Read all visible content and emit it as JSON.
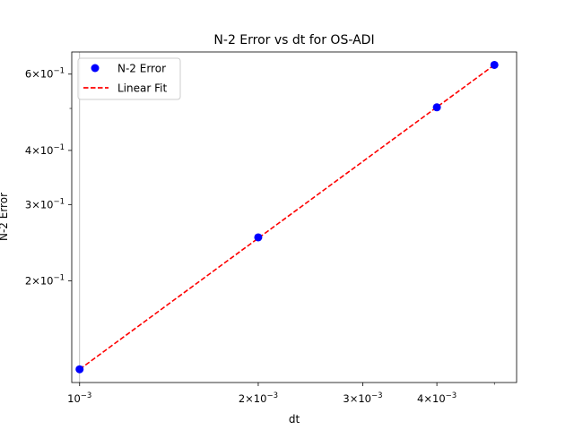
{
  "chart_data": {
    "type": "scatter",
    "title": "N-2 Error vs dt for OS-ADI",
    "xlabel": "dt",
    "ylabel": "N-2 Error",
    "xscale": "log",
    "yscale": "log",
    "xlim": [
      0.00097,
      0.00545
    ],
    "ylim": [
      0.1165,
      0.675
    ],
    "grid": "vertical line at dt = 1e-3 only",
    "legend_position": "top-left",
    "x_ticks": [
      {
        "value": 0.001,
        "base": "10",
        "exp": "−3",
        "mant": ""
      },
      {
        "value": 0.002,
        "base": "10",
        "exp": "−3",
        "mant": "2×"
      },
      {
        "value": 0.003,
        "base": "10",
        "exp": "−3",
        "mant": "3×"
      },
      {
        "value": 0.004,
        "base": "10",
        "exp": "−3",
        "mant": "4×"
      }
    ],
    "y_ticks": [
      {
        "value": 0.2,
        "base": "10",
        "exp": "−1",
        "mant": "2×"
      },
      {
        "value": 0.3,
        "base": "10",
        "exp": "−1",
        "mant": "3×"
      },
      {
        "value": 0.4,
        "base": "10",
        "exp": "−1",
        "mant": "4×"
      },
      {
        "value": 0.6,
        "base": "10",
        "exp": "−1",
        "mant": "6×"
      }
    ],
    "series": [
      {
        "name": "N-2 Error",
        "kind": "scatter",
        "color": "#0000ff",
        "x": [
          0.001,
          0.002,
          0.004,
          0.005
        ],
        "y": [
          0.125,
          0.252,
          0.503,
          0.63
        ]
      },
      {
        "name": "Linear Fit",
        "kind": "line",
        "style": "dashed",
        "color": "#ff0000",
        "x": [
          0.001,
          0.005
        ],
        "y": [
          0.125,
          0.63
        ]
      }
    ]
  }
}
